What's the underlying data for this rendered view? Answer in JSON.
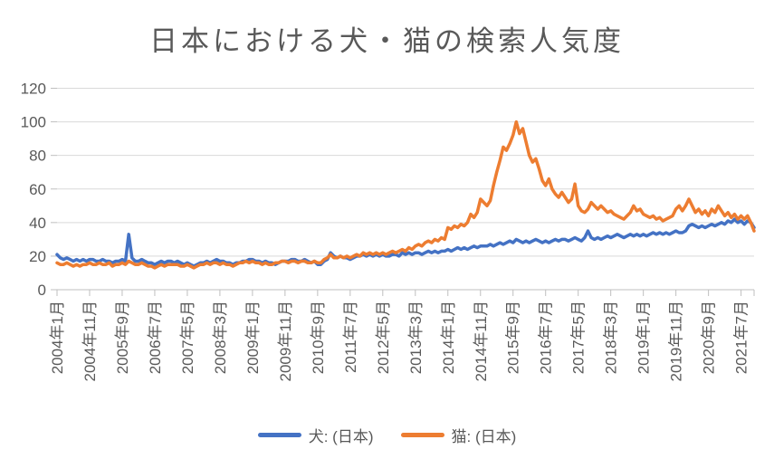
{
  "title": "日本における犬・猫の検索人気度",
  "colors": {
    "dog_line": "#4472C4",
    "cat_line": "#ED7D31",
    "text": "#595959",
    "gridline": "#D9D9D9",
    "axis": "#BFBFBF",
    "background": "#FFFFFF"
  },
  "chart_data": {
    "type": "line",
    "title": "日本における犬・猫の検索人気度",
    "xlabel": "",
    "ylabel": "",
    "ylim": [
      0,
      120
    ],
    "y_ticks": [
      0,
      20,
      40,
      60,
      80,
      100,
      120
    ],
    "grid": true,
    "legend_position": "bottom",
    "x_start": "2004-01",
    "x_interval": "month",
    "n_points": 215,
    "x_tick_every": 10,
    "x_tick_labels": [
      "2004年1月",
      "2004年11月",
      "2005年9月",
      "2006年7月",
      "2007年5月",
      "2008年3月",
      "2009年1月",
      "2009年11月",
      "2010年9月",
      "2011年7月",
      "2012年5月",
      "2013年3月",
      "2014年1月",
      "2014年11月",
      "2015年9月",
      "2016年7月",
      "2017年5月",
      "2018年3月",
      "2019年1月",
      "2019年11月",
      "2020年9月",
      "2021年7月"
    ],
    "series": [
      {
        "name": "犬: (日本)",
        "color": "#4472C4",
        "values": [
          21,
          19,
          18,
          19,
          18,
          17,
          18,
          17,
          18,
          17,
          18,
          18,
          17,
          17,
          18,
          17,
          17,
          16,
          17,
          17,
          18,
          17,
          33,
          19,
          17,
          17,
          18,
          17,
          16,
          16,
          15,
          16,
          17,
          16,
          17,
          17,
          16,
          17,
          16,
          15,
          16,
          15,
          14,
          15,
          16,
          16,
          17,
          16,
          17,
          18,
          17,
          17,
          16,
          16,
          15,
          16,
          16,
          17,
          17,
          18,
          18,
          17,
          17,
          16,
          17,
          16,
          16,
          15,
          16,
          17,
          17,
          17,
          18,
          18,
          17,
          17,
          18,
          17,
          16,
          17,
          15,
          15,
          17,
          18,
          22,
          20,
          19,
          20,
          19,
          19,
          18,
          19,
          20,
          20,
          21,
          20,
          21,
          20,
          21,
          20,
          21,
          20,
          20,
          21,
          21,
          20,
          22,
          21,
          22,
          21,
          22,
          22,
          21,
          22,
          23,
          22,
          23,
          22,
          23,
          23,
          24,
          23,
          24,
          25,
          24,
          25,
          24,
          25,
          26,
          25,
          26,
          26,
          26,
          27,
          26,
          27,
          28,
          27,
          28,
          29,
          28,
          30,
          29,
          28,
          29,
          28,
          29,
          30,
          29,
          28,
          29,
          28,
          29,
          30,
          29,
          30,
          30,
          29,
          30,
          31,
          30,
          29,
          31,
          35,
          31,
          30,
          31,
          30,
          31,
          32,
          31,
          32,
          33,
          32,
          31,
          32,
          33,
          32,
          33,
          32,
          33,
          32,
          33,
          34,
          33,
          34,
          33,
          34,
          33,
          34,
          35,
          34,
          34,
          35,
          38,
          39,
          38,
          37,
          38,
          37,
          38,
          39,
          38,
          39,
          40,
          39,
          41,
          40,
          42,
          40,
          41,
          39,
          41,
          40,
          37
        ]
      },
      {
        "name": "猫: (日本)",
        "color": "#ED7D31",
        "values": [
          16,
          15,
          15,
          16,
          15,
          14,
          15,
          14,
          15,
          15,
          16,
          15,
          15,
          16,
          15,
          15,
          16,
          14,
          15,
          15,
          16,
          15,
          17,
          16,
          15,
          15,
          16,
          15,
          14,
          14,
          13,
          14,
          15,
          14,
          15,
          15,
          15,
          15,
          14,
          14,
          15,
          14,
          13,
          14,
          15,
          15,
          16,
          15,
          16,
          16,
          15,
          16,
          15,
          15,
          14,
          15,
          16,
          16,
          17,
          16,
          17,
          16,
          16,
          15,
          16,
          15,
          15,
          16,
          16,
          17,
          17,
          16,
          17,
          17,
          16,
          17,
          17,
          16,
          16,
          17,
          16,
          16,
          18,
          19,
          21,
          19,
          19,
          20,
          19,
          20,
          19,
          20,
          21,
          20,
          22,
          21,
          22,
          21,
          22,
          21,
          22,
          21,
          22,
          23,
          22,
          23,
          24,
          23,
          25,
          24,
          26,
          27,
          26,
          28,
          29,
          28,
          30,
          29,
          31,
          30,
          37,
          36,
          38,
          37,
          39,
          38,
          40,
          45,
          43,
          46,
          54,
          52,
          50,
          53,
          62,
          70,
          77,
          85,
          83,
          87,
          92,
          100,
          93,
          96,
          88,
          80,
          76,
          78,
          72,
          65,
          62,
          66,
          60,
          57,
          55,
          58,
          55,
          52,
          54,
          63,
          50,
          47,
          46,
          48,
          52,
          50,
          48,
          50,
          48,
          46,
          47,
          45,
          44,
          43,
          42,
          44,
          46,
          50,
          47,
          48,
          45,
          44,
          43,
          44,
          42,
          43,
          41,
          42,
          43,
          44,
          48,
          50,
          47,
          50,
          54,
          50,
          46,
          48,
          45,
          47,
          44,
          48,
          46,
          50,
          47,
          44,
          46,
          43,
          45,
          42,
          44,
          42,
          44,
          40,
          35
        ]
      }
    ]
  }
}
